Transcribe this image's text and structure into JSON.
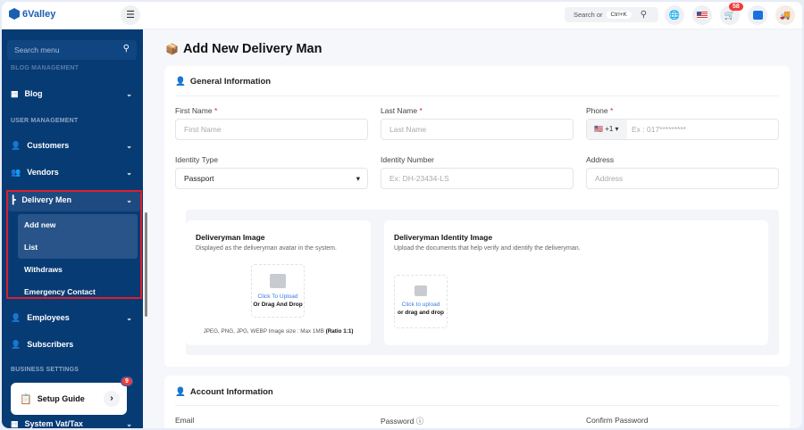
{
  "header": {
    "brand": "6Valley",
    "search_label": "Search or",
    "search_shortcut": "Ctrl+K",
    "cart_count": "58"
  },
  "sidebar": {
    "search_placeholder": "Search menu",
    "cut_section": "BLOG MANAGEMENT",
    "blog": "Blog",
    "user_management": "USER MANAGEMENT",
    "customers": "Customers",
    "vendors": "Vendors",
    "delivery_men": "Delivery Men",
    "sub": [
      "Add new",
      "List",
      "Withdraws",
      "Emergency Contact"
    ],
    "employees": "Employees",
    "subscribers": "Subscribers",
    "business_settings": "BUSINESS SETTINGS",
    "setup_guide": "Setup Guide",
    "setup_badge": "9",
    "vat": "System Vat/Tax"
  },
  "page": {
    "title": "Add New Delivery Man"
  },
  "general": {
    "title": "General Information",
    "first_name": {
      "label": "First Name",
      "placeholder": "First Name"
    },
    "last_name": {
      "label": "Last Name",
      "placeholder": "Last Name"
    },
    "phone": {
      "label": "Phone",
      "code": "+1",
      "placeholder": "Ex : 017*********"
    },
    "identity_type": {
      "label": "Identity Type",
      "value": "Passport"
    },
    "identity_number": {
      "label": "Identity Number",
      "placeholder": "Ex: DH-23434-LS"
    },
    "address": {
      "label": "Address",
      "placeholder": "Address"
    },
    "req": "*"
  },
  "image": {
    "title": "Deliveryman Image",
    "desc": "Displayed as the deliveryman avatar in the system.",
    "click": "Click To Upload",
    "drag": "Or Drag And Drop",
    "note": "JPEG, PNG, JPG, WEBP Image size : Max 1MB",
    "ratio": "(Ratio 1:1)"
  },
  "identity_image": {
    "title": "Deliveryman Identity Image",
    "desc": "Upload the documents that help verify and identify the deliveryman.",
    "click": "Click to upload",
    "drag": "or drag and drop"
  },
  "account": {
    "title": "Account Information",
    "email": "Email",
    "password": "Password",
    "confirm": "Confirm Password"
  },
  "colors": {
    "sidebar": "#073b74",
    "highlight": "#e01e2b",
    "accent": "#3b7ddd"
  }
}
